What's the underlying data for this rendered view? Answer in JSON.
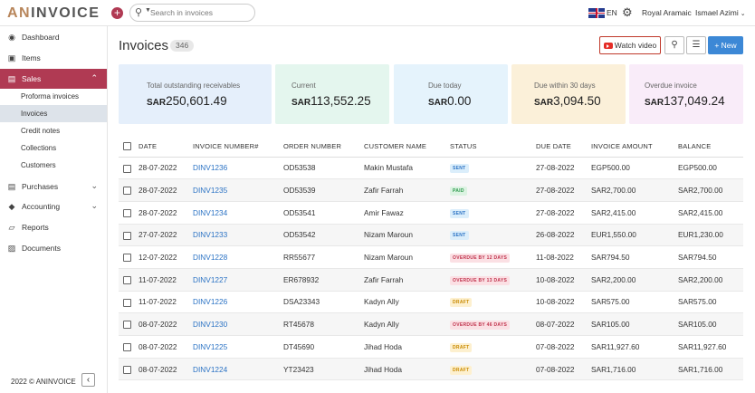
{
  "app": {
    "logo_accent": "AN",
    "logo_rest": "INVOICE",
    "search_placeholder": "Search in invoices",
    "language": "EN",
    "org_name": "Royal Aramaic",
    "user_name": "Ismael Azimi",
    "footer": "2022 © ANINVOICE",
    "colors": {
      "brand": "#b03a53",
      "link": "#2a72c4",
      "primary_button": "#3c88d6"
    }
  },
  "sidebar": {
    "items": [
      {
        "label": "Dashboard",
        "icon": "dashboard-icon"
      },
      {
        "label": "Items",
        "icon": "items-icon"
      },
      {
        "label": "Sales",
        "icon": "sales-icon"
      },
      {
        "label": "Purchases",
        "icon": "purchases-icon"
      },
      {
        "label": "Accounting",
        "icon": "accounting-icon"
      },
      {
        "label": "Reports",
        "icon": "reports-icon"
      },
      {
        "label": "Documents",
        "icon": "documents-icon"
      }
    ],
    "sales_sub": [
      "Proforma invoices",
      "Invoices",
      "Credit notes",
      "Collections",
      "Customers"
    ]
  },
  "header": {
    "title": "Invoices",
    "count": "346",
    "watch_label": "Watch video",
    "new_label": "+ New"
  },
  "cards": [
    {
      "label": "Total outstanding receivables",
      "currency": "SAR",
      "amount": "250,601.49",
      "color": "#e5effb"
    },
    {
      "label": "Current",
      "currency": "SAR",
      "amount": "113,552.25",
      "color": "#e4f6ee"
    },
    {
      "label": "Due today",
      "currency": "SAR",
      "amount": "0.00",
      "color": "#e5f3fc"
    },
    {
      "label": "Due within 30 days",
      "currency": "SAR",
      "amount": "3,094.50",
      "color": "#fbf0d9"
    },
    {
      "label": "Overdue invoice",
      "currency": "SAR",
      "amount": "137,049.24",
      "color": "#f9ecf9"
    }
  ],
  "table": {
    "headers": [
      "DATE",
      "INVOICE NUMBER#",
      "ORDER NUMBER",
      "CUSTOMER NAME",
      "STATUS",
      "DUE DATE",
      "INVOICE AMOUNT",
      "BALANCE"
    ],
    "rows": [
      {
        "date": "28-07-2022",
        "invoice": "DINV1236",
        "order": "OD53538",
        "customer": "Makin Mustafa",
        "status": "SENT",
        "status_type": "sent",
        "due": "27-08-2022",
        "amount": "EGP500.00",
        "balance": "EGP500.00"
      },
      {
        "date": "28-07-2022",
        "invoice": "DINV1235",
        "order": "OD53539",
        "customer": "Zafir Farrah",
        "status": "PAID",
        "status_type": "paid",
        "due": "27-08-2022",
        "amount": "SAR2,700.00",
        "balance": "SAR2,700.00"
      },
      {
        "date": "28-07-2022",
        "invoice": "DINV1234",
        "order": "OD53541",
        "customer": "Amir Fawaz",
        "status": "SENT",
        "status_type": "sent",
        "due": "27-08-2022",
        "amount": "SAR2,415.00",
        "balance": "SAR2,415.00"
      },
      {
        "date": "27-07-2022",
        "invoice": "DINV1233",
        "order": "OD53542",
        "customer": "Nizam Maroun",
        "status": "SENT",
        "status_type": "sent",
        "due": "26-08-2022",
        "amount": "EUR1,550.00",
        "balance": "EUR1,230.00"
      },
      {
        "date": "12-07-2022",
        "invoice": "DINV1228",
        "order": "RR55677",
        "customer": "Nizam Maroun",
        "status": "OVERDUE BY 12 DAYS",
        "status_type": "overdue",
        "due": "11-08-2022",
        "amount": "SAR794.50",
        "balance": "SAR794.50"
      },
      {
        "date": "11-07-2022",
        "invoice": "DINV1227",
        "order": "ER678932",
        "customer": "Zafir Farrah",
        "status": "OVERDUE BY 13 DAYS",
        "status_type": "overdue",
        "due": "10-08-2022",
        "amount": "SAR2,200.00",
        "balance": "SAR2,200.00"
      },
      {
        "date": "11-07-2022",
        "invoice": "DINV1226",
        "order": "DSA23343",
        "customer": "Kadyn Ally",
        "status": "DRAFT",
        "status_type": "draft",
        "due": "10-08-2022",
        "amount": "SAR575.00",
        "balance": "SAR575.00"
      },
      {
        "date": "08-07-2022",
        "invoice": "DINV1230",
        "order": "RT45678",
        "customer": "Kadyn Ally",
        "status": "OVERDUE BY 46 DAYS",
        "status_type": "overdue",
        "due": "08-07-2022",
        "amount": "SAR105.00",
        "balance": "SAR105.00"
      },
      {
        "date": "08-07-2022",
        "invoice": "DINV1225",
        "order": "DT45690",
        "customer": "Jihad Hoda",
        "status": "DRAFT",
        "status_type": "draft",
        "due": "07-08-2022",
        "amount": "SAR11,927.60",
        "balance": "SAR11,927.60"
      },
      {
        "date": "08-07-2022",
        "invoice": "DINV1224",
        "order": "YT23423",
        "customer": "Jihad Hoda",
        "status": "DRAFT",
        "status_type": "draft",
        "due": "07-08-2022",
        "amount": "SAR1,716.00",
        "balance": "SAR1,716.00"
      }
    ]
  }
}
